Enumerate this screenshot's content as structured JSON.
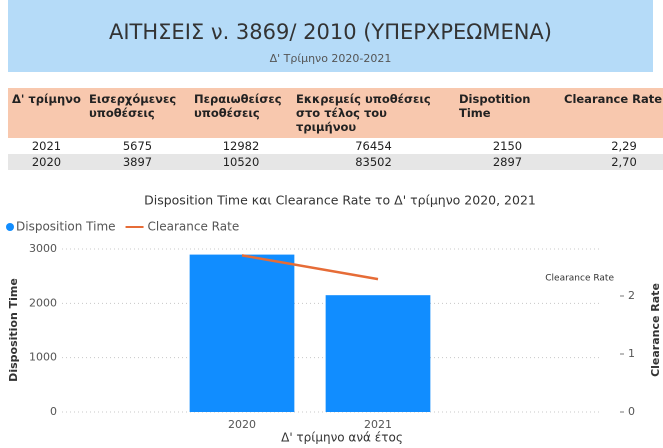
{
  "header": {
    "title": "ΑΙΤΗΣΕΙΣ ν. 3869/ 2010 (ΥΠΕΡΧΡΕΩΜΕΝΑ)",
    "subtitle": "Δ' Τρίμηνο 2020-2021"
  },
  "table": {
    "columns": [
      "Δ' τρίμηνο",
      "Εισερχόμενες υποθέσεις",
      "Περαιωθείσες υποθέσεις",
      "Εκκρεμείς υποθέσεις στο τέλος του τριμήνου",
      "Dispotition Time",
      "Clearance Rate"
    ],
    "rows": [
      [
        "2021",
        "5675",
        "12982",
        "76454",
        "2150",
        "2,29"
      ],
      [
        "2020",
        "3897",
        "10520",
        "83502",
        "2897",
        "2,70"
      ]
    ]
  },
  "chart_data": {
    "type": "combo",
    "title": "Disposition Time και Clearance Rate το Δ' τρίμηνο 2020, 2021",
    "categories": [
      "2020",
      "2021"
    ],
    "x_label": "Δ' τρίμηνο ανά έτος",
    "y_label": "Disposition Time",
    "y2_label": "Clearance Rate",
    "y2_title": "Clearance Rate",
    "series": [
      {
        "name": "Disposition Time",
        "type": "bar",
        "color": "#118dff",
        "values": [
          2897,
          2150
        ]
      },
      {
        "name": "Clearance Rate",
        "type": "line",
        "color": "#e66c37",
        "values": [
          2.7,
          2.29
        ],
        "axis": "y2"
      }
    ],
    "ylim": [
      0,
      3000
    ],
    "yticks": [
      0,
      1000,
      2000,
      3000
    ],
    "y2lim": [
      0,
      2.81
    ],
    "y2ticks": [
      0,
      1,
      2
    ],
    "grid": true
  }
}
